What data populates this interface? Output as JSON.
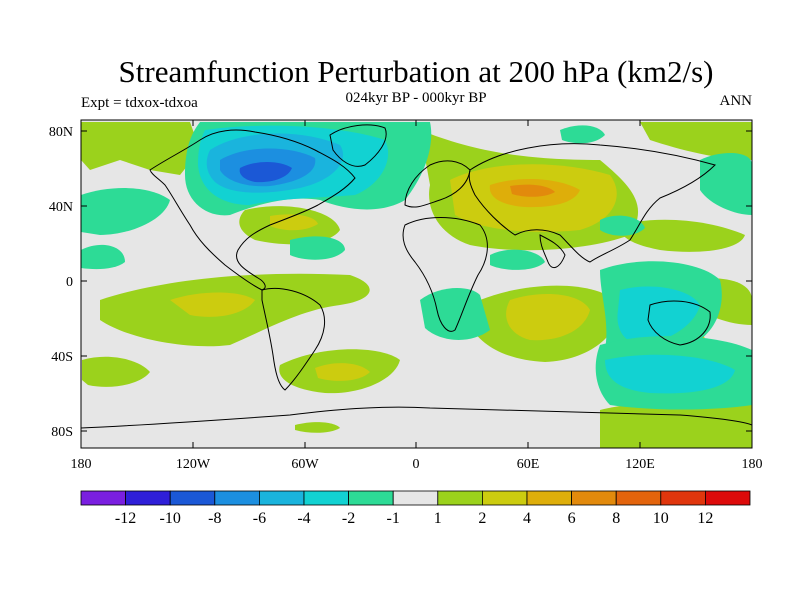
{
  "title": "Streamfunction Perturbation at 200 hPa (km2/s)",
  "left_label": "Expt = tdxox-tdxoa",
  "center_label": "024kyr BP - 000kyr BP",
  "right_label": "ANN",
  "lat_labels": [
    "80N",
    "40N",
    "0",
    "40S",
    "80S"
  ],
  "lon_labels": [
    "180",
    "120W",
    "60W",
    "0",
    "60E",
    "120E",
    "180"
  ],
  "colorbar": {
    "labels": [
      "-12",
      "-10",
      "-8",
      "-6",
      "-4",
      "-2",
      "-1",
      "1",
      "2",
      "4",
      "6",
      "8",
      "10",
      "12"
    ],
    "colors": [
      "#7a1fe0",
      "#2f1fd8",
      "#1b58d6",
      "#1c8fe0",
      "#1ab4dd",
      "#12d2d2",
      "#2ddb96",
      "#e6e6e6",
      "#9bd21c",
      "#cccc0f",
      "#deae0a",
      "#e28a0c",
      "#e3640c",
      "#e0360d",
      "#dd0a0a"
    ]
  },
  "colors": {
    "background": "#e6e6e6",
    "coast": "#000000"
  }
}
